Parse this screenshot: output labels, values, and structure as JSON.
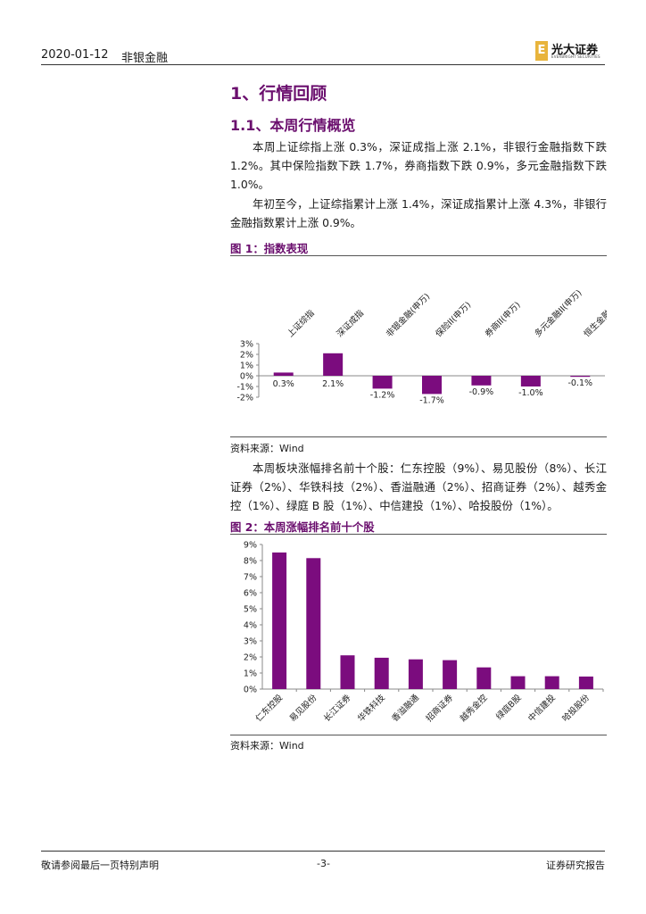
{
  "header": {
    "date": "2020-01-12",
    "sector": "非银金融",
    "logo_text": "光大证券",
    "logo_sub": "EVERBRIGHT SECURITIES",
    "logo_mark": "E"
  },
  "section_title": "1、行情回顾",
  "subsection_title": "1.1、本周行情概览",
  "paragraphs": {
    "p1": "本周上证综指上涨 0.3%，深证成指上涨 2.1%，非银行金融指数下跌 1.2%。其中保险指数下跌 1.7%，券商指数下跌 0.9%，多元金融指数下跌 1.0%。",
    "p2": "年初至今，上证综指累计上涨 1.4%，深证成指累计上涨 4.3%，非银行金融指数累计上涨 0.9%。",
    "p3": "本周板块涨幅排名前十个股：仁东控股（9%）、易见股份（8%）、长江证券（2%）、华铁科技（2%）、香溢融通（2%）、招商证券（2%）、越秀金控（1%）、绿庭 B 股（1%）、中信建投（1%）、哈投股份（1%）。"
  },
  "figure1": {
    "title": "图 1：指数表现",
    "source": "资料来源：Wind"
  },
  "figure2": {
    "title": "图 2：本周涨幅排名前十个股",
    "source": "资料来源：Wind"
  },
  "chart_data": [
    {
      "type": "bar",
      "categories": [
        "上证综指",
        "深证成指",
        "非银金融(申万)",
        "保险II(申万)",
        "券商II(申万)",
        "多元金融II(申万)",
        "恒生金融业"
      ],
      "values": [
        0.3,
        2.1,
        -1.2,
        -1.7,
        -0.9,
        -1.0,
        -0.1
      ],
      "data_labels": [
        "0.3%",
        "2.1%",
        "-1.2%",
        "-1.7%",
        "-0.9%",
        "-1.0%",
        "-0.1%"
      ],
      "y_ticks": [
        "3%",
        "2%",
        "1%",
        "0%",
        "-1%",
        "-2%"
      ],
      "ylim": [
        -2,
        3
      ],
      "bar_color": "#7b0c7e",
      "category_position": "top, rotated",
      "grid": false
    },
    {
      "type": "bar",
      "categories": [
        "仁东控股",
        "易见股份",
        "长江证券",
        "华铁科技",
        "香溢融通",
        "招商证券",
        "越秀金控",
        "绿庭B股",
        "中信建投",
        "哈投股份"
      ],
      "values": [
        8.5,
        8.15,
        2.1,
        1.95,
        1.85,
        1.8,
        1.35,
        0.8,
        0.8,
        0.78
      ],
      "y_ticks": [
        "9%",
        "8%",
        "7%",
        "6%",
        "5%",
        "4%",
        "3%",
        "2%",
        "1%",
        "0%"
      ],
      "ylim": [
        0,
        9
      ],
      "bar_color": "#7b0c7e",
      "grid": false
    }
  ],
  "footer": {
    "left": "敬请参阅最后一页特别声明",
    "page": "-3-",
    "right": "证券研究报告"
  }
}
